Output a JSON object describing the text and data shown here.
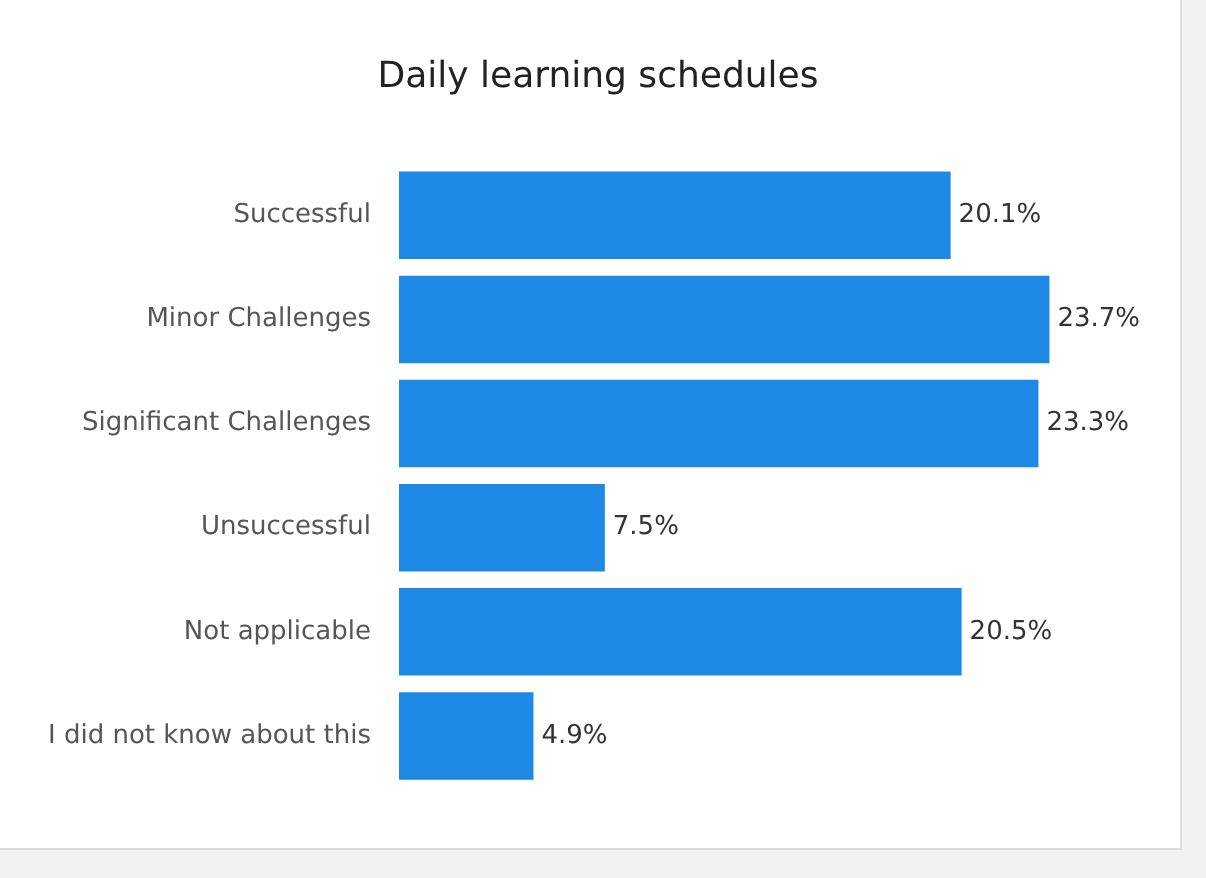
{
  "chart_data": {
    "type": "bar",
    "orientation": "horizontal",
    "title": "Daily learning schedules",
    "categories": [
      "Successful",
      "Minor Challenges",
      "Significant Challenges",
      "Unsuccessful",
      "Not applicable",
      "I did not know about this"
    ],
    "values": [
      20.1,
      23.7,
      23.3,
      7.5,
      20.5,
      4.9
    ],
    "value_labels": [
      "20.1%",
      "23.7%",
      "23.3%",
      "7.5%",
      "20.5%",
      "4.9%"
    ],
    "color": "#1e88e5",
    "legend": false
  }
}
